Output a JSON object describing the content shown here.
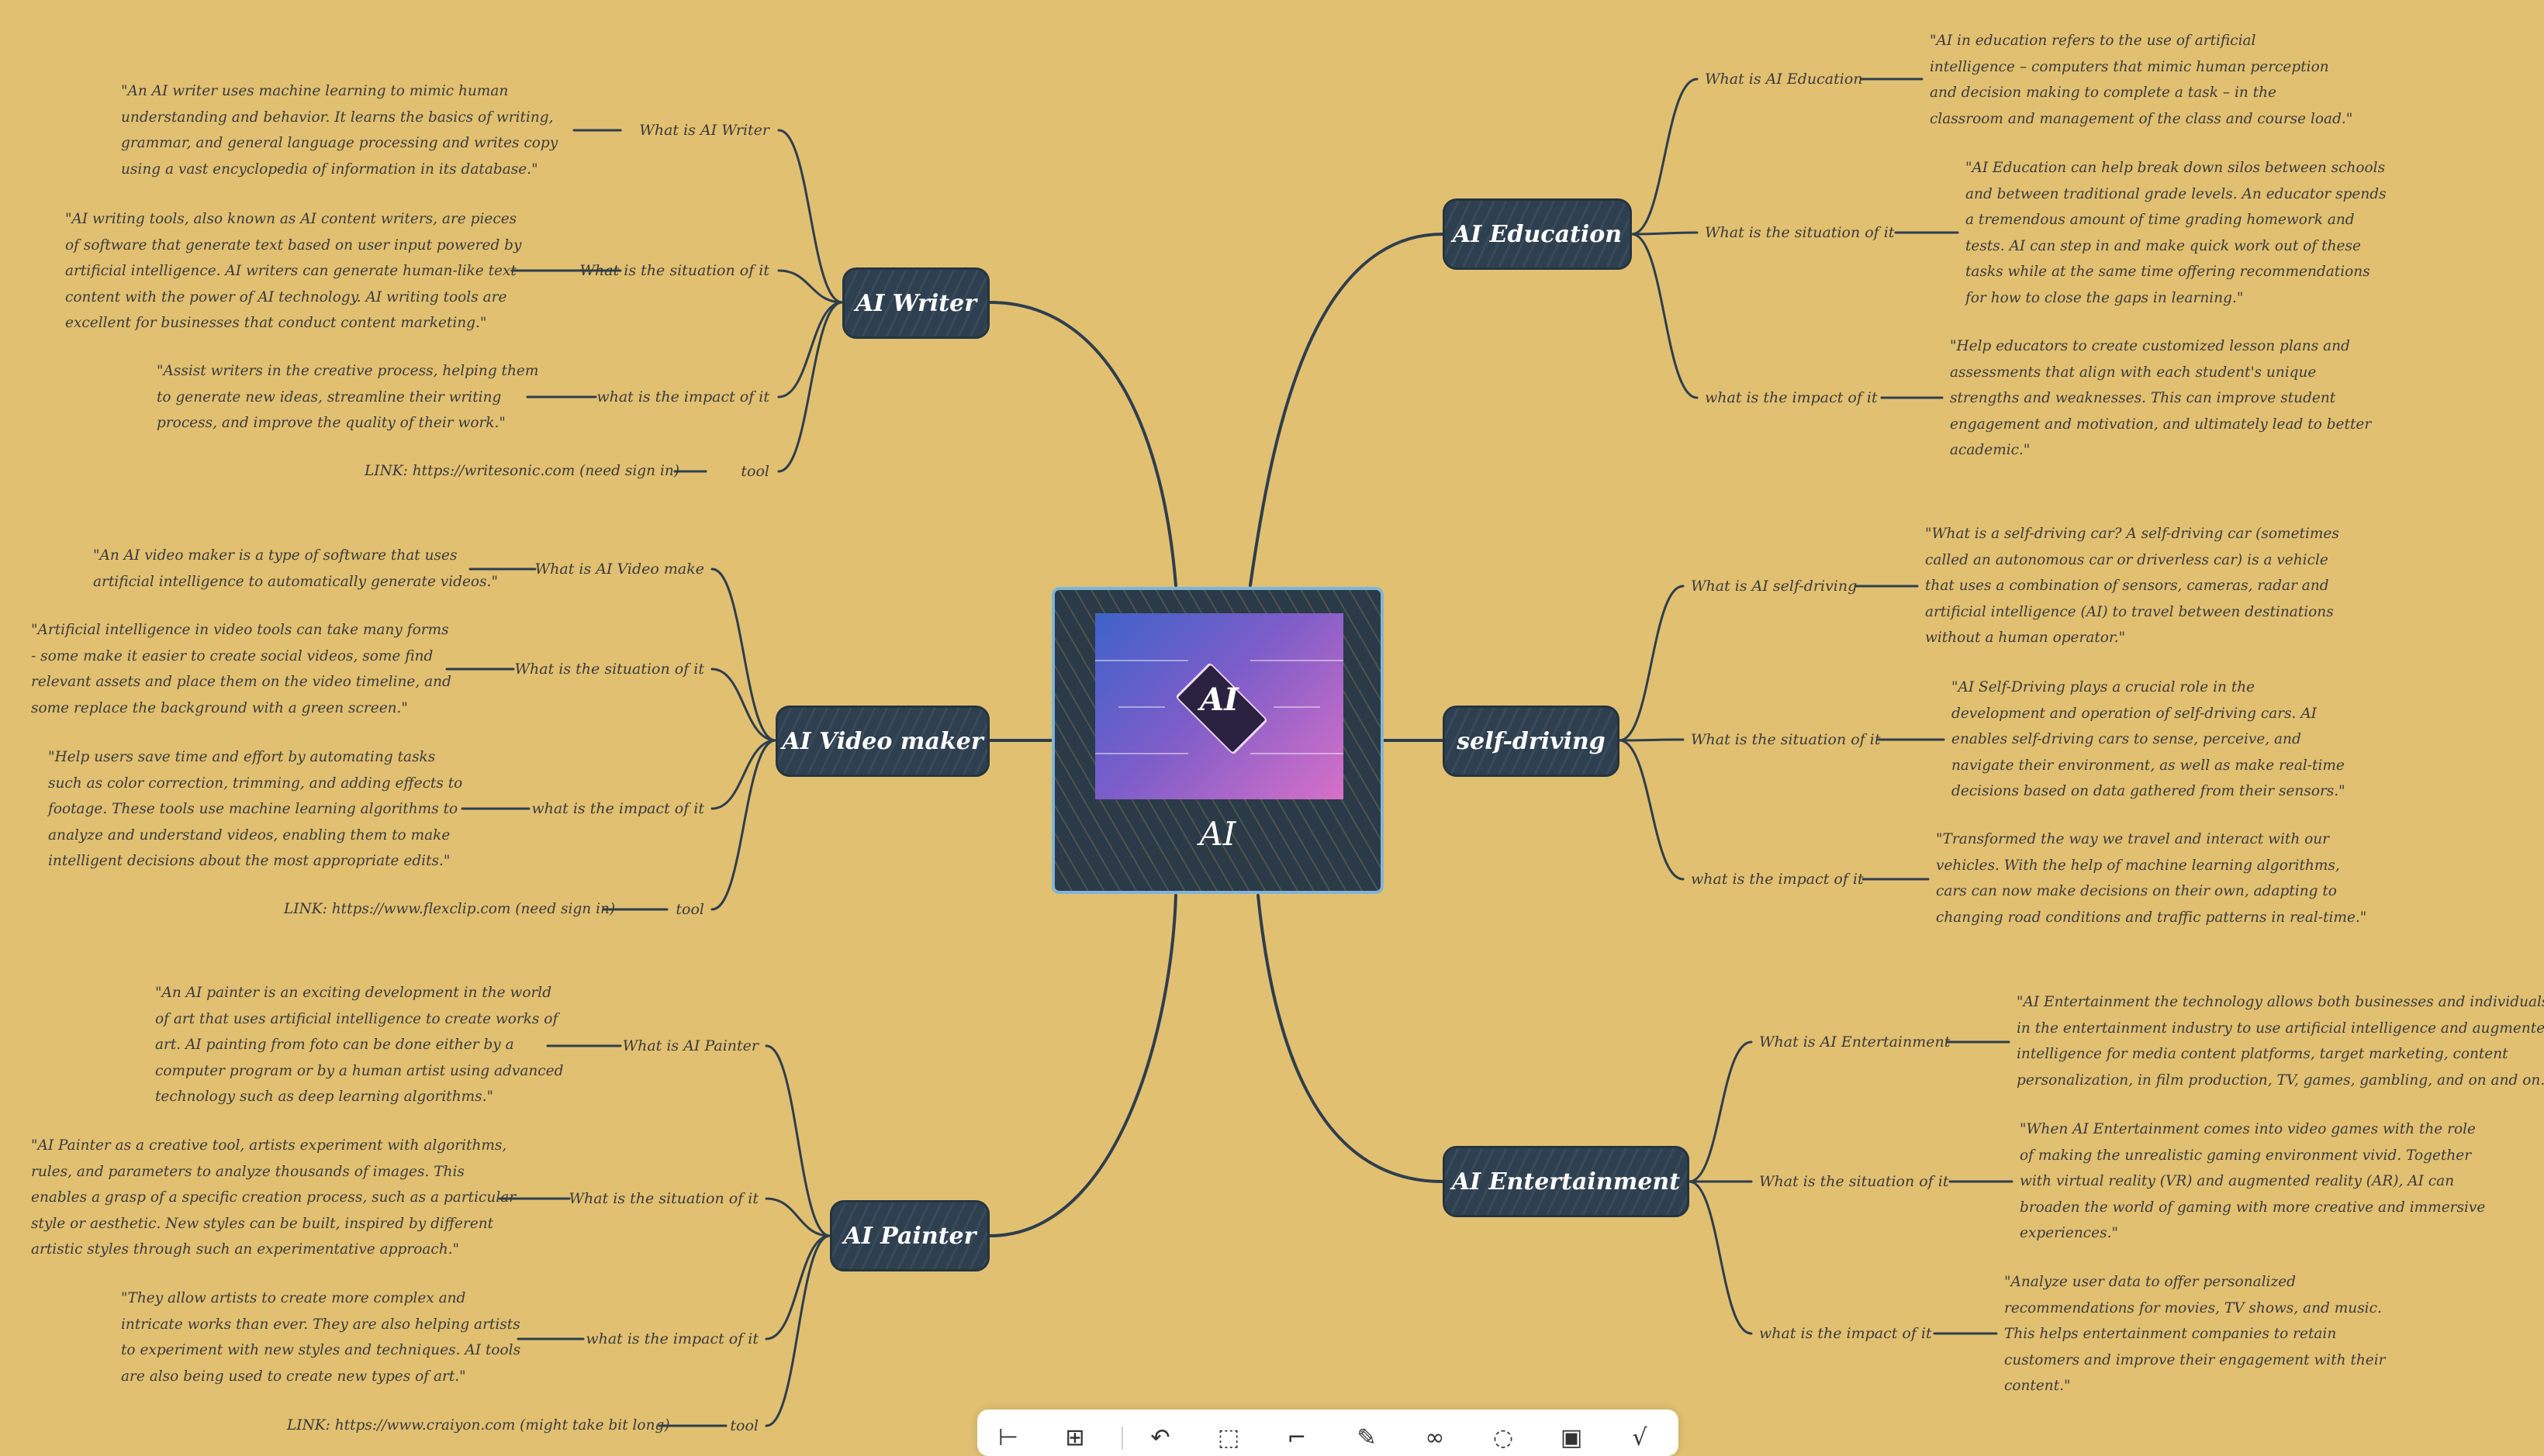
{
  "center": {
    "title": "AI",
    "image_label": "AI"
  },
  "branches": {
    "writer": {
      "title": "AI Writer",
      "items": [
        {
          "label": "What is AI Writer",
          "note": "\"An AI writer uses machine learning to mimic human\nunderstanding and behavior. It learns the basics of writing,\ngrammar, and general language processing and writes copy\nusing a vast encyclopedia of information in its database.\""
        },
        {
          "label": "What is the situation of it",
          "note": "\"AI writing tools, also known as AI content writers, are pieces\nof software that generate text based on user input powered by\nartificial intelligence. AI writers can generate human-like text\ncontent with the power of AI technology. AI writing tools are\nexcellent for businesses that conduct content marketing.\""
        },
        {
          "label": "what is the impact of it",
          "note": "\"Assist writers in the creative process, helping them\nto generate new ideas, streamline their writing\nprocess, and improve the quality of their work.\""
        },
        {
          "label": "tool",
          "note": "LINK: https://writesonic.com (need sign in)"
        }
      ]
    },
    "video": {
      "title": "AI Video maker",
      "items": [
        {
          "label": "What is AI Video make",
          "note": "\"An AI video maker is a type of software that uses\nartificial intelligence to automatically generate videos.\""
        },
        {
          "label": "What is the situation of it",
          "note": "\"Artificial intelligence in video tools can take many forms\n- some make it easier to create social videos, some find\nrelevant assets and place them on the video timeline, and\nsome replace the background with a green screen.\""
        },
        {
          "label": "what is the impact of it",
          "note": "\"Help users save time and effort by automating tasks\nsuch as color correction, trimming, and adding effects to\nfootage. These tools use machine learning algorithms to\nanalyze and understand videos, enabling them to make\nintelligent decisions about the most appropriate edits.\""
        },
        {
          "label": "tool",
          "note": "LINK: https://www.flexclip.com (need sign in)"
        }
      ]
    },
    "painter": {
      "title": "AI Painter",
      "items": [
        {
          "label": "What is AI Painter",
          "note": "\"An AI painter is an exciting development in the world\nof art that uses artificial intelligence to create works of\nart. AI painting from foto can be done either by a\ncomputer program or by a human artist using advanced\ntechnology such as deep learning algorithms.\""
        },
        {
          "label": "What is the situation of it",
          "note": "\"AI Painter as a creative tool, artists experiment with algorithms,\nrules, and parameters to analyze thousands of images. This\nenables a grasp of a specific creation process, such as a particular\nstyle or aesthetic. New styles can be built, inspired by different\nartistic styles through such an experimentative approach.\""
        },
        {
          "label": "what is the impact of it",
          "note": "\"They allow artists to create more complex and\nintricate works than ever. They are also helping artists\nto experiment with new styles and techniques. AI tools\nare also being used to create new types of art.\""
        },
        {
          "label": "tool",
          "note": "LINK: https://www.craiyon.com (might take bit long)"
        }
      ]
    },
    "education": {
      "title": "AI Education",
      "items": [
        {
          "label": "What is AI Education",
          "note": "\"AI in education refers to the use of artificial\nintelligence – computers that mimic human perception\nand decision making to complete a task – in the\nclassroom and management of the class and course load.\""
        },
        {
          "label": "What is the situation of it",
          "note": "\"AI Education can help break down silos between schools\nand between traditional grade levels. An educator spends\na tremendous amount of time grading homework and\ntests. AI can step in and make quick work out of these\ntasks while at the same time offering recommendations\nfor how to close the gaps in learning.\""
        },
        {
          "label": "what is the impact of it",
          "note": "\"Help educators to create customized lesson plans and\nassessments that align with each student's unique\nstrengths and weaknesses. This can improve student\nengagement and motivation, and ultimately lead to better\nacademic.\""
        }
      ]
    },
    "selfdriving": {
      "title": "self-driving",
      "items": [
        {
          "label": "What is AI self-driving",
          "note": "\"What is a self-driving car? A self-driving car (sometimes\ncalled an autonomous car or driverless car) is a vehicle\nthat uses a combination of sensors, cameras, radar and\nartificial intelligence (AI) to travel between destinations\nwithout a human operator.\""
        },
        {
          "label": "What is the situation of it",
          "note": "\"AI Self-Driving plays a crucial role in the\ndevelopment and operation of self-driving cars. AI\nenables self-driving cars to sense, perceive, and\nnavigate their environment, as well as make real-time\ndecisions based on data gathered from their sensors.\""
        },
        {
          "label": "what is the impact of it",
          "note": "\"Transformed the way we travel and interact with our\nvehicles. With the help of machine learning algorithms,\ncars can now make decisions on their own, adapting to\nchanging road conditions and traffic patterns in real-time.\""
        }
      ]
    },
    "entertainment": {
      "title": "AI Entertainment",
      "items": [
        {
          "label": "What is AI Entertainment",
          "note": "\"AI Entertainment the technology allows both businesses and individuals\nin the entertainment industry to use artificial intelligence and augmented\nintelligence for media content platforms, target marketing, content\npersonalization, in film production, TV, games, gambling, and on and on.\""
        },
        {
          "label": "What is the situation of it",
          "note": "\"When AI Entertainment comes into video games with the role\nof making the unrealistic gaming environment vivid. Together\nwith virtual reality (VR) and augmented reality (AR), AI can\nbroaden the world of gaming with more creative and immersive\nexperiences.\""
        },
        {
          "label": "what is the impact of it",
          "note": "\"Analyze user data to offer personalized\nrecommendations for movies, TV shows, and music.\nThis helps entertainment companies to retain\ncustomers and improve their engagement with their\ncontent.\""
        }
      ]
    }
  },
  "toolbar": {
    "icons": [
      "subtopic-icon",
      "sibling-topic-icon",
      "relationship-icon",
      "boundary-icon",
      "summary-icon",
      "note-icon",
      "link-icon",
      "label-icon",
      "image-icon",
      "formula-icon"
    ],
    "glyphs": [
      "⊢",
      "⊞",
      "↶",
      "⬚",
      "⌐",
      "✎",
      "∞",
      "◌",
      "▣",
      "√"
    ]
  },
  "colors": {
    "background": "#E1C072",
    "topic": "#2E4050",
    "line": "#2E3E4D",
    "text": "#3A3A3A",
    "center_border": "#7FB4D8"
  }
}
